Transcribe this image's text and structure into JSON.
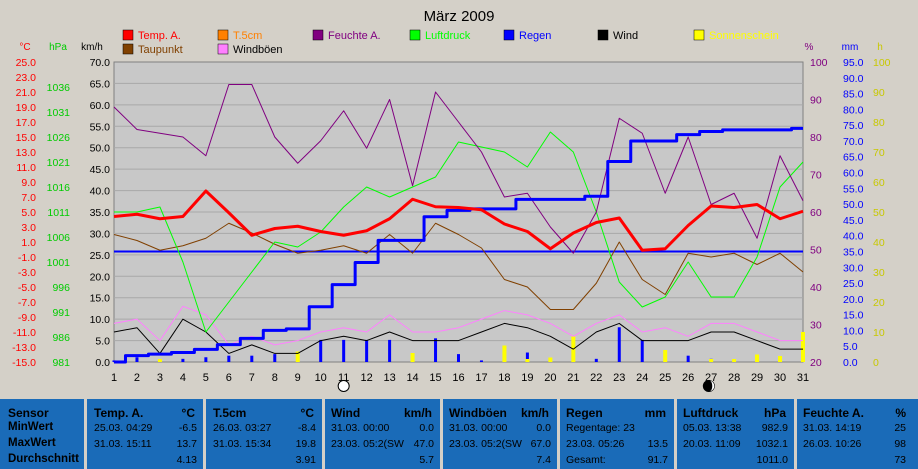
{
  "chart_data": {
    "type": "line",
    "title": "März 2009",
    "x": [
      1,
      2,
      3,
      4,
      5,
      6,
      7,
      8,
      9,
      10,
      11,
      12,
      13,
      14,
      15,
      16,
      17,
      18,
      19,
      20,
      21,
      22,
      23,
      24,
      25,
      26,
      27,
      28,
      29,
      30,
      31
    ],
    "axes": {
      "temp": {
        "label": "°C",
        "range": [
          -15,
          25
        ],
        "ticks": [
          "25.0",
          "23.0",
          "21.0",
          "19.0",
          "17.0",
          "15.0",
          "13.0",
          "11.0",
          "9.0",
          "7.0",
          "5.0",
          "3.0",
          "1.0",
          "-1.0",
          "-3.0",
          "-5.0",
          "-7.0",
          "-9.0",
          "-11.0",
          "-13.0",
          "-15.0"
        ],
        "color": "#ff0000"
      },
      "pressure": {
        "label": "hPa",
        "range": [
          981,
          1041
        ],
        "ticks": [
          "1036",
          "1031",
          "1026",
          "1021",
          "1016",
          "1011",
          "1006",
          "1001",
          "996",
          "991",
          "986",
          "981"
        ],
        "color": "#00cc00"
      },
      "wind": {
        "label": "km/h",
        "range": [
          0,
          70
        ],
        "ticks": [
          "70.0",
          "65.0",
          "60.0",
          "55.0",
          "50.0",
          "45.0",
          "40.0",
          "35.0",
          "30.0",
          "25.0",
          "20.0",
          "15.0",
          "10.0",
          "5.0",
          "0.0"
        ],
        "color": "#000000"
      },
      "humidity": {
        "label": "%",
        "range": [
          20,
          100
        ],
        "ticks": [
          "100",
          "90",
          "80",
          "70",
          "60",
          "50",
          "40",
          "30",
          "20"
        ],
        "color": "#800080"
      },
      "rain": {
        "label": "mm",
        "range": [
          0,
          95
        ],
        "ticks": [
          "95.0",
          "90.0",
          "85.0",
          "80.0",
          "75.0",
          "70.0",
          "65.0",
          "60.0",
          "55.0",
          "50.0",
          "45.0",
          "40.0",
          "35.0",
          "30.0",
          "25.0",
          "20.0",
          "15.0",
          "10.0",
          "5.0",
          "0.0"
        ],
        "color": "#0000ff"
      },
      "sun": {
        "label": "h",
        "range": [
          0,
          100
        ],
        "ticks": [
          "100",
          "90",
          "80",
          "70",
          "60",
          "50",
          "40",
          "30",
          "20",
          "10",
          "0"
        ],
        "color": "#ffff00"
      }
    },
    "legend": [
      {
        "name": "Temp. A.",
        "color": "#ff0000"
      },
      {
        "name": "T.5cm",
        "color": "#ff8000"
      },
      {
        "name": "Feuchte A.",
        "color": "#800080"
      },
      {
        "name": "Luftdruck",
        "color": "#00ff00"
      },
      {
        "name": "Regen",
        "color": "#0000ff"
      },
      {
        "name": "Wind",
        "color": "#000000"
      },
      {
        "name": "Sonnenschein",
        "color": "#ffff00"
      },
      {
        "name": "Taupunkt",
        "color": "#804000"
      },
      {
        "name": "Windböen",
        "color": "#ff80ff"
      }
    ],
    "series": [
      {
        "name": "Temp. A.",
        "axis": "temp",
        "color": "#ff0000",
        "values": [
          4.4,
          4.7,
          4.1,
          4.4,
          7.8,
          4.9,
          1.9,
          2.8,
          3.1,
          2.4,
          1.9,
          2.5,
          4.1,
          6.7,
          5.7,
          5.6,
          5.3,
          3.4,
          2.4,
          0.1,
          2.2,
          3.6,
          4.2,
          -0.1,
          0.1,
          3.2,
          5.8,
          5.6,
          6.0,
          4.1,
          5.1
        ]
      },
      {
        "name": "Feuchte A.",
        "axis": "humidity",
        "values": [
          88,
          82,
          81,
          80,
          75,
          94,
          94,
          80,
          73,
          79,
          87,
          77,
          90,
          67,
          92,
          84,
          76,
          64,
          65,
          56,
          49,
          60,
          85,
          81,
          65,
          80,
          62,
          65,
          53,
          75,
          63
        ]
      },
      {
        "name": "Luftdruck",
        "axis": "pressure",
        "values": [
          1011,
          1011,
          1012,
          1001,
          987,
          993,
          999,
          1005,
          1004,
          1007,
          1012,
          1016,
          1014,
          1016,
          1018,
          1025,
          1024,
          1023,
          1020,
          1027,
          1023,
          1011,
          997,
          992,
          994,
          1001,
          994,
          994,
          1002,
          1016,
          1021
        ]
      },
      {
        "name": "Taupunkt",
        "axis": "temp",
        "values": [
          2.0,
          1.2,
          -0.1,
          0.5,
          1.5,
          3.5,
          2.2,
          0.7,
          -0.5,
          -0.1,
          0.5,
          -0.5,
          2.0,
          -0.5,
          3.5,
          2.0,
          0.2,
          -4.0,
          -5.0,
          -8.0,
          -8.0,
          -4.5,
          1.0,
          -4.0,
          -6.0,
          -0.5,
          -1.0,
          -0.5,
          -2.0,
          -0.5,
          -3.0
        ]
      },
      {
        "name": "Regen",
        "axis": "rain",
        "values": [
          0,
          2,
          2.5,
          3,
          4,
          5.5,
          7.5,
          10,
          10.5,
          17.5,
          24.5,
          31.5,
          38.5,
          38.5,
          46,
          48,
          48.5,
          48.5,
          51.5,
          51.5,
          51.5,
          52.5,
          63.5,
          70,
          70,
          72,
          73,
          73.5,
          73.5,
          73.5,
          74
        ]
      },
      {
        "name": "Wind",
        "axis": "wind",
        "values": [
          7,
          8,
          2,
          10,
          7,
          2,
          4,
          2,
          2,
          5,
          6,
          5,
          7,
          5,
          5,
          5,
          7,
          9,
          8,
          6,
          3,
          7,
          9,
          5,
          5,
          5,
          7,
          7,
          5,
          3,
          3
        ]
      },
      {
        "name": "Windböen",
        "axis": "wind",
        "values": [
          9,
          10,
          5,
          13,
          11,
          4,
          6,
          4,
          5,
          7,
          8,
          7,
          11,
          7,
          7,
          8,
          10,
          12,
          11,
          9,
          6,
          9,
          11,
          7,
          8,
          6,
          9,
          9,
          7,
          5,
          5
        ]
      }
    ],
    "rain_daily": [
      0.5,
      1.5,
      0.5,
      1,
      1.5,
      2,
      2,
      2.5,
      0.5,
      7,
      7,
      7,
      7,
      0,
      7.5,
      2.5,
      0.5,
      0,
      3,
      0,
      0,
      1,
      11,
      7,
      0,
      2,
      1,
      0.5,
      0,
      0.5,
      1
    ],
    "sun_daily": [
      0,
      0,
      1,
      0,
      0,
      0,
      0,
      0,
      3.5,
      0,
      0,
      0,
      0,
      3,
      0,
      0,
      0,
      5.5,
      1,
      1.5,
      8.5,
      0,
      0,
      0,
      4,
      0,
      1,
      1,
      2.5,
      2,
      10
    ],
    "regen_level": 35,
    "moon": [
      {
        "day": 11,
        "phase": "full"
      },
      {
        "day": 26.9,
        "phase": "new"
      }
    ]
  },
  "table": {
    "sensor": {
      "header": "Sensor",
      "rows": [
        "MinWert",
        "MaxWert",
        "Durchschnitt"
      ]
    },
    "temp": {
      "header": "Temp. A.",
      "unit": "°C",
      "min_time": "25.03.  04:29",
      "min_val": "-6.5",
      "max_time": "31.03.  15:11",
      "max_val": "13.7",
      "avg": "4.13"
    },
    "t5cm": {
      "header": "T.5cm",
      "unit": "°C",
      "min_time": "26.03.  03:27",
      "min_val": "-8.4",
      "max_time": "31.03.  15:34",
      "max_val": "19.8",
      "avg": "3.91"
    },
    "wind": {
      "header": "Wind",
      "unit": "km/h",
      "min_time": "31.03.  00:00",
      "min_val": "0.0",
      "max_time": "23.03.  05:2(SW",
      "max_val": "47.0",
      "avg": "5.7"
    },
    "boeen": {
      "header": "Windböen",
      "unit": "km/h",
      "min_time": "31.03.  00:00",
      "min_val": "0.0",
      "max_time": "23.03.  05:2(SW",
      "max_val": "67.0",
      "avg": "7.4"
    },
    "regen": {
      "header": "Regen",
      "unit": "mm",
      "r1": "Regentage: 23",
      "r2_time": "23.03.  05:26",
      "r2_val": "13.5",
      "r3_label": "Gesamt:",
      "r3_val": "91.7"
    },
    "luft": {
      "header": "Luftdruck",
      "unit": "hPa",
      "min_time": "05.03.  13:38",
      "min_val": "982.9",
      "max_time": "20.03.  11:09",
      "max_val": "1032.1",
      "avg": "1011.0"
    },
    "feuchte": {
      "header": "Feuchte A.",
      "unit": "%",
      "min_time": "31.03.  14:19",
      "min_val": "25",
      "max_time": "26.03.  10:26",
      "max_val": "98",
      "avg": "73"
    }
  }
}
